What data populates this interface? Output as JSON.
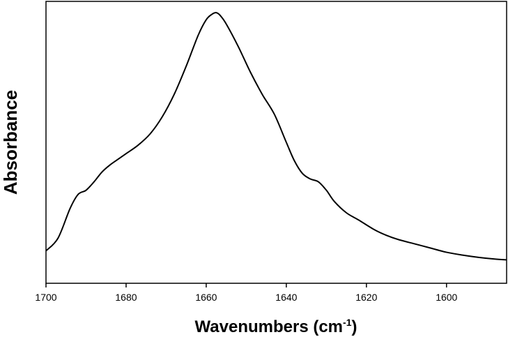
{
  "chart_data": {
    "type": "line",
    "title": "",
    "xlabel": "Wavenumbers (cm",
    "xlabel_superscript": "-1",
    "xlabel_suffix": ")",
    "ylabel": "Absorbance",
    "xlim": [
      1700,
      1585
    ],
    "x_reversed": true,
    "ylim": [
      0,
      1
    ],
    "y_ticks_shown": false,
    "grid": false,
    "x_ticks": [
      1700,
      1680,
      1660,
      1640,
      1620,
      1600
    ],
    "x_tick_labels": [
      "1700",
      "1680",
      "1660",
      "1640",
      "1620",
      "1600"
    ],
    "series": [
      {
        "x": [
          1700,
          1697,
          1694,
          1692,
          1690,
          1688,
          1686,
          1684,
          1682,
          1680,
          1677,
          1674,
          1671,
          1668,
          1665,
          1662,
          1660,
          1658.5,
          1657.5,
          1656.5,
          1655,
          1652,
          1649,
          1646,
          1643,
          1640,
          1638,
          1636,
          1634,
          1632,
          1630,
          1628,
          1625,
          1622,
          1618,
          1615,
          1612,
          1608,
          1604,
          1600,
          1596,
          1592,
          1588,
          1585
        ],
        "y": [
          0.115,
          0.16,
          0.265,
          0.315,
          0.33,
          0.36,
          0.395,
          0.42,
          0.44,
          0.46,
          0.49,
          0.53,
          0.59,
          0.67,
          0.77,
          0.88,
          0.935,
          0.955,
          0.96,
          0.95,
          0.92,
          0.84,
          0.75,
          0.67,
          0.6,
          0.5,
          0.435,
          0.39,
          0.37,
          0.36,
          0.33,
          0.29,
          0.25,
          0.225,
          0.19,
          0.17,
          0.155,
          0.14,
          0.125,
          0.11,
          0.1,
          0.092,
          0.086,
          0.083
        ]
      }
    ]
  }
}
